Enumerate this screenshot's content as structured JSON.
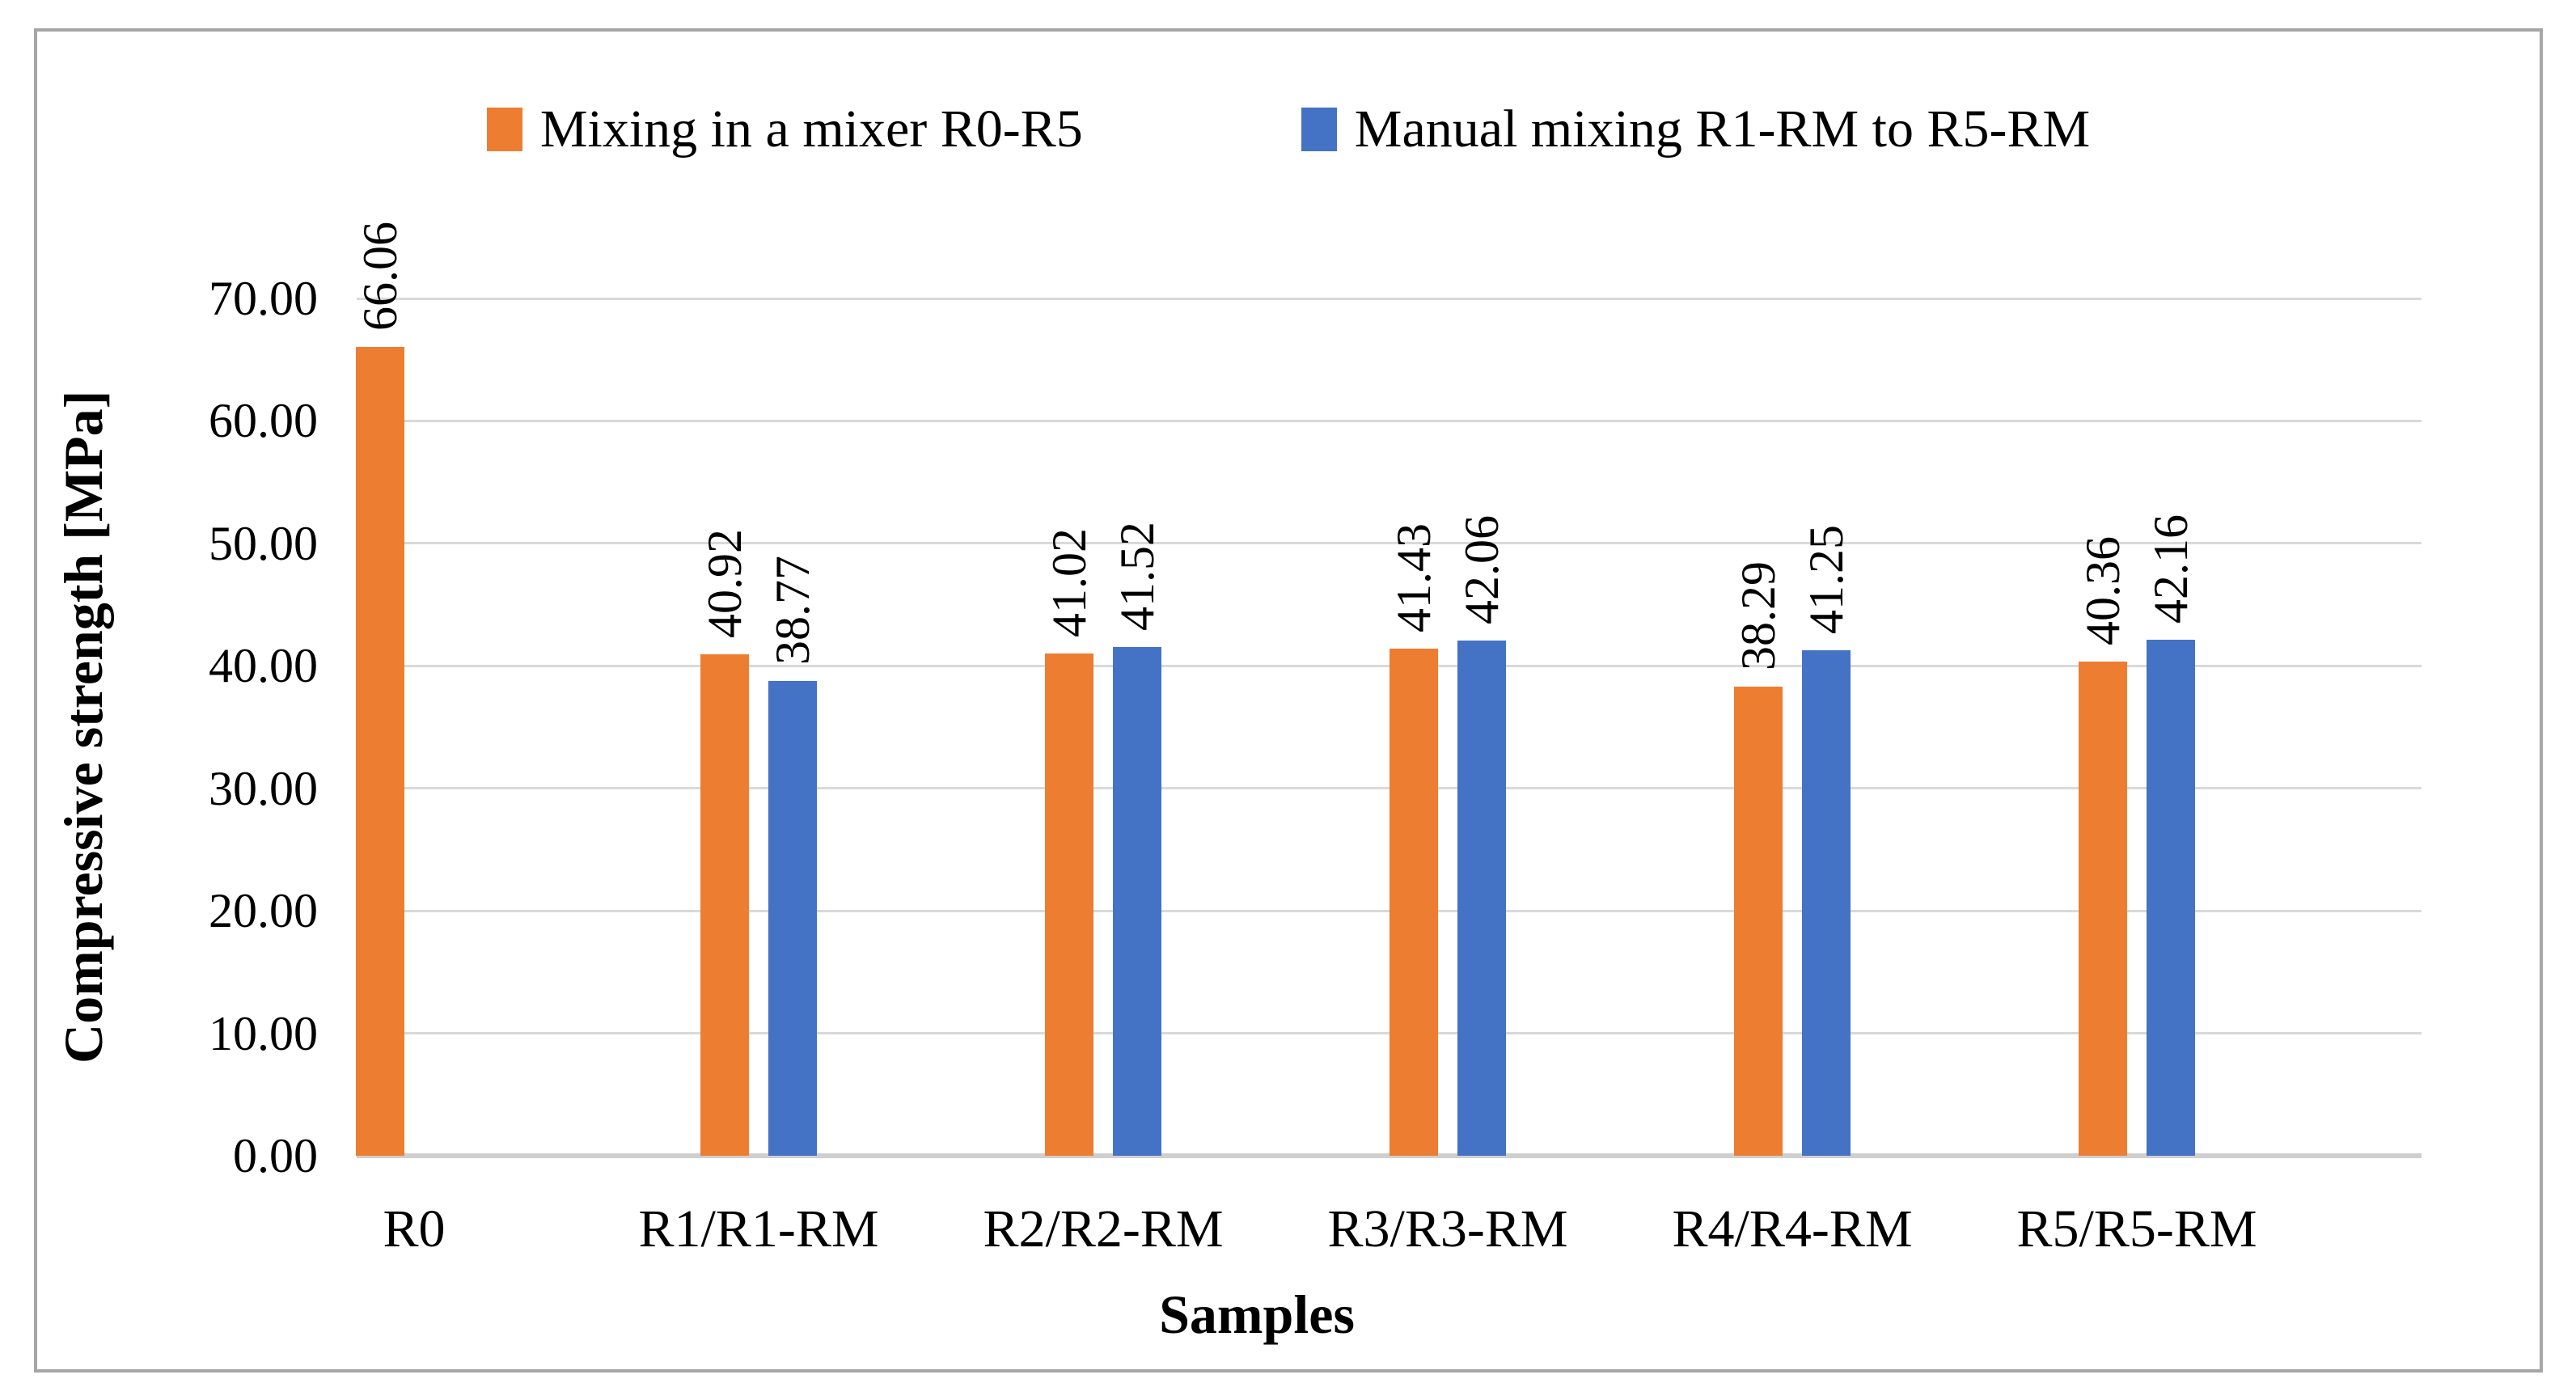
{
  "figure": {
    "background": "#FFFFFF",
    "border_color": "#A6A6A6",
    "gridline_color": "#D9D9D9",
    "axis_line_color": "#CFCFCF"
  },
  "chart_data": {
    "type": "bar",
    "title": "",
    "xlabel": "Samples",
    "ylabel": "Compressive strength [MPa]",
    "ylim": [
      0,
      70
    ],
    "grid": true,
    "legend_position": "top",
    "yticks": [
      {
        "value": 0,
        "label": "0.00"
      },
      {
        "value": 10,
        "label": "10.00"
      },
      {
        "value": 20,
        "label": "20.00"
      },
      {
        "value": 30,
        "label": "30.00"
      },
      {
        "value": 40,
        "label": "40.00"
      },
      {
        "value": 50,
        "label": "50.00"
      },
      {
        "value": 60,
        "label": "60.00"
      },
      {
        "value": 70,
        "label": "70.00"
      }
    ],
    "categories": [
      "R0",
      "R1/R1-RM",
      "R2/R2-RM",
      "R3/R3-RM",
      "R4/R4-RM",
      "R5/R5-RM"
    ],
    "series": [
      {
        "name": "Mixing in a mixer R0-R5",
        "color": "#ED7D31",
        "values": [
          66.06,
          40.92,
          41.02,
          41.43,
          38.29,
          40.36
        ],
        "data_labels": [
          "66.06",
          "40.92",
          "41.02",
          "41.43",
          "38.29",
          "40.36"
        ]
      },
      {
        "name": "Manual mixing R1-RM to R5-RM",
        "color": "#4472C4",
        "values": [
          null,
          38.77,
          41.52,
          42.06,
          41.25,
          42.16
        ],
        "data_labels": [
          null,
          "38.77",
          "41.52",
          "42.06",
          "41.25",
          "42.16"
        ]
      }
    ]
  }
}
